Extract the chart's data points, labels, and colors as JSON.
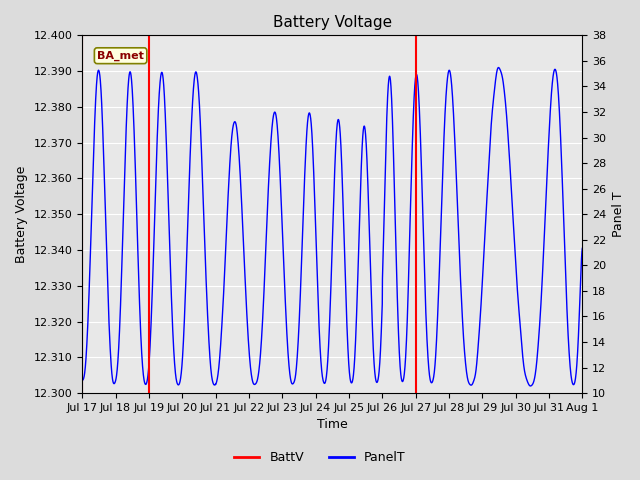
{
  "title": "Battery Voltage",
  "ylabel_left": "Battery Voltage",
  "ylabel_right": "Panel T",
  "xlabel": "Time",
  "ylim_left": [
    12.3,
    12.4
  ],
  "ylim_right": [
    10,
    38
  ],
  "yticks_left": [
    12.3,
    12.31,
    12.32,
    12.33,
    12.34,
    12.35,
    12.36,
    12.37,
    12.38,
    12.39,
    12.4
  ],
  "yticks_right": [
    10,
    12,
    14,
    16,
    18,
    20,
    22,
    24,
    26,
    28,
    30,
    32,
    34,
    36,
    38
  ],
  "xtick_labels": [
    "Jul 17",
    "Jul 18",
    "Jul 19",
    "Jul 20",
    "Jul 21",
    "Jul 22",
    "Jul 23",
    "Jul 24",
    "Jul 25",
    "Jul 26",
    "Jul 27",
    "Jul 28",
    "Jul 29",
    "Jul 30",
    "Jul 31",
    "Aug 1"
  ],
  "background_color": "#dcdcdc",
  "plot_bg_color": "#e8e8e8",
  "grid_color": "#ffffff",
  "vline_color": "red",
  "vline_positions": [
    0,
    2,
    10
  ],
  "annotation_text": "BA_met",
  "battv_color": "red",
  "panelt_color": "blue",
  "title_fontsize": 11,
  "axis_label_fontsize": 9,
  "tick_fontsize": 8,
  "legend_fontsize": 9
}
